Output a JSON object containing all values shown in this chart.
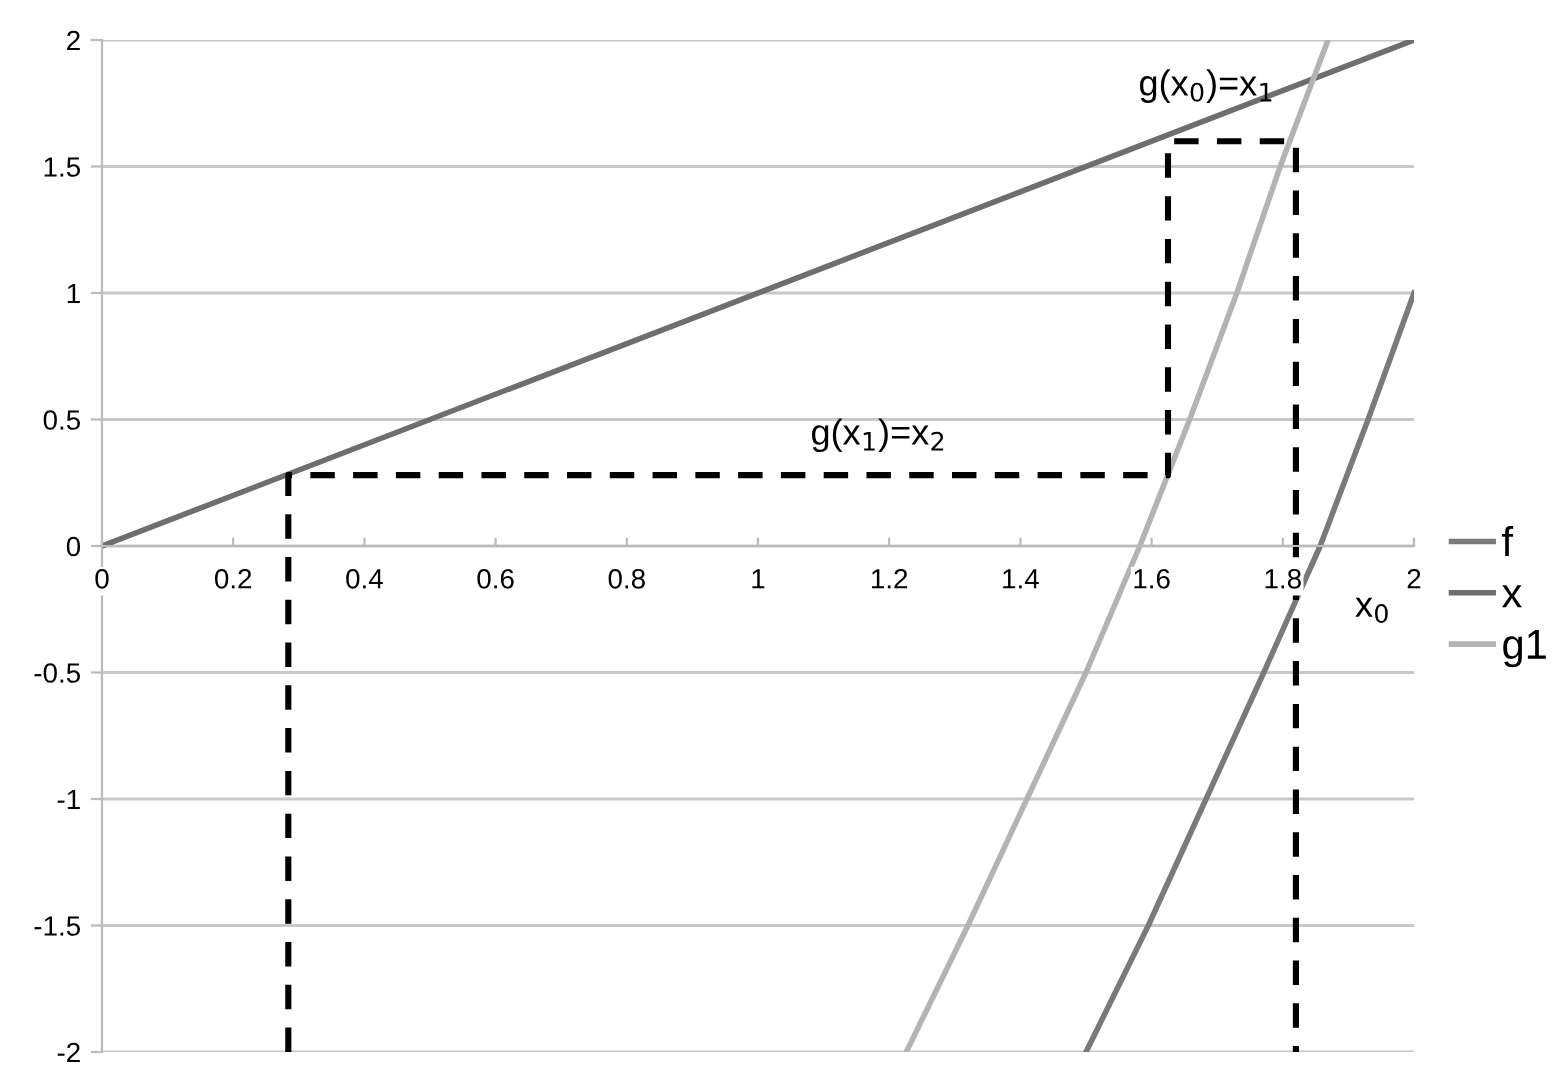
{
  "chart_data": {
    "type": "line",
    "xlim": [
      0,
      2
    ],
    "ylim": [
      -2,
      2
    ],
    "xticks": [
      0,
      0.2,
      0.4,
      0.6,
      0.8,
      1,
      1.2,
      1.4,
      1.6,
      1.8,
      2
    ],
    "yticks": [
      -2,
      -1.5,
      -1,
      -0.5,
      0,
      0.5,
      1,
      1.5,
      2
    ],
    "grid": "y",
    "legend": "right",
    "marker": "none",
    "line_style": "solid",
    "series": [
      {
        "name": "f",
        "color": "#7a7a7a",
        "x": [
          1.5,
          1.595,
          1.683,
          1.771,
          1.857,
          1.93,
          2
        ],
        "values": [
          -2,
          -1.5,
          -1,
          -0.5,
          0,
          0.5,
          1
        ]
      },
      {
        "name": "x",
        "color": "#6e6e6e",
        "x": [
          0,
          2
        ],
        "values": [
          0,
          2
        ]
      },
      {
        "name": "g1",
        "color": "#b3b3b3",
        "x": [
          1.226,
          1.32,
          1.41,
          1.5,
          1.582,
          1.658,
          1.73,
          1.796,
          1.869
        ],
        "values": [
          -2,
          -1.5,
          -1,
          -0.5,
          0,
          0.5,
          1,
          1.5,
          2
        ]
      },
      {
        "color": "#000000",
        "line_style": "dashed",
        "x": [
          0.284,
          0.284,
          1.625,
          1.625,
          1.82,
          1.82
        ],
        "values": [
          -2,
          0.28,
          0.28,
          1.6,
          1.6,
          -2
        ]
      }
    ],
    "annotations": [
      "g(x$_{0}$)=x$_{1}$",
      "g(x$_{1}$)=x$_{2}$",
      "x$_{0}$"
    ]
  }
}
